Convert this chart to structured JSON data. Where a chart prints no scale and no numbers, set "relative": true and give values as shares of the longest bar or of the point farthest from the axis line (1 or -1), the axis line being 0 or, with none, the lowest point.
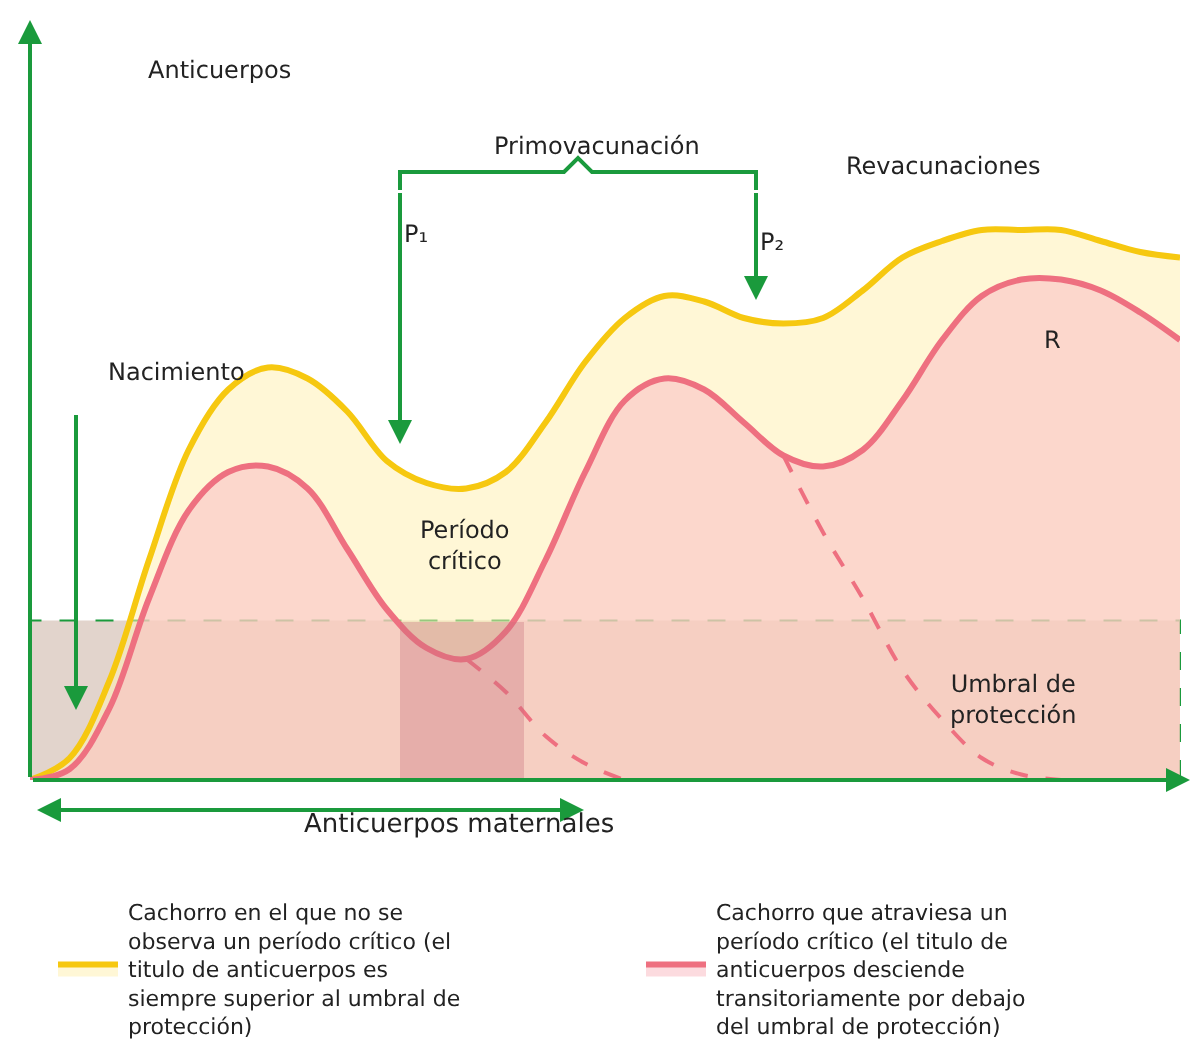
{
  "chart_data": {
    "type": "area",
    "relative": true,
    "xlabel": "Anticuerpos maternales",
    "categories": [
      null,
      null,
      null,
      null,
      null,
      null,
      null,
      null,
      null,
      null,
      null,
      null,
      null,
      null,
      null,
      null,
      null,
      null,
      null,
      null,
      null,
      null,
      null,
      null,
      null,
      null,
      null,
      null,
      null,
      null
    ],
    "series": [
      {
        "name": "Cachorro en el que no se observa un período crítico (el titulo de anticuerpos es siempre superior al umbral de protección)",
        "color": "#f6c810",
        "values": [
          0,
          0.04,
          0.18,
          0.4,
          0.6,
          0.71,
          0.75,
          0.73,
          0.67,
          0.58,
          0.54,
          0.53,
          0.56,
          0.65,
          0.76,
          0.84,
          0.88,
          0.87,
          0.84,
          0.83,
          0.84,
          0.89,
          0.95,
          0.98,
          1.0,
          1.0,
          1.0,
          0.98,
          0.96,
          0.95
        ]
      },
      {
        "name": "Cachorro que atraviesa un período crítico (el titulo de anticuerpos desciende transitoriamente por debajo del umbral de protección)",
        "color": "#ee7080",
        "values": [
          0,
          0.02,
          0.13,
          0.33,
          0.49,
          0.56,
          0.57,
          0.53,
          0.42,
          0.31,
          0.24,
          0.22,
          0.27,
          0.4,
          0.56,
          0.69,
          0.73,
          0.71,
          0.65,
          0.59,
          0.57,
          0.6,
          0.69,
          0.8,
          0.88,
          0.91,
          0.91,
          0.89,
          0.85,
          0.8
        ]
      },
      {
        "type": "line",
        "line_style": "dashed",
        "color": "#ee7080",
        "values": [
          null,
          null,
          null,
          null,
          null,
          null,
          null,
          null,
          null,
          null,
          null,
          0.22,
          0.16,
          0.08,
          0.03,
          0,
          null,
          null,
          null,
          null,
          null,
          null,
          null,
          null,
          null,
          null,
          null,
          null,
          null,
          null
        ]
      },
      {
        "type": "line",
        "line_style": "dashed",
        "color": "#ee7080",
        "values": [
          null,
          null,
          null,
          null,
          null,
          null,
          null,
          null,
          null,
          null,
          null,
          null,
          null,
          null,
          null,
          null,
          null,
          null,
          null,
          0.59,
          0.45,
          0.33,
          0.2,
          0.11,
          0.04,
          0.01,
          0,
          null,
          null,
          null
        ]
      }
    ],
    "bands": [
      {
        "axis": "y",
        "from": 0,
        "to": 0.29,
        "label": "Umbral de\nprotección",
        "color": "#e2d4cc"
      }
    ],
    "annotations": [
      "Nacimiento",
      "Primovacunación",
      "P₁",
      "P₂",
      "Revacunaciones",
      "R",
      "Período\ncrítico",
      "Anticuerpos"
    ],
    "legend": "bottom"
  }
}
